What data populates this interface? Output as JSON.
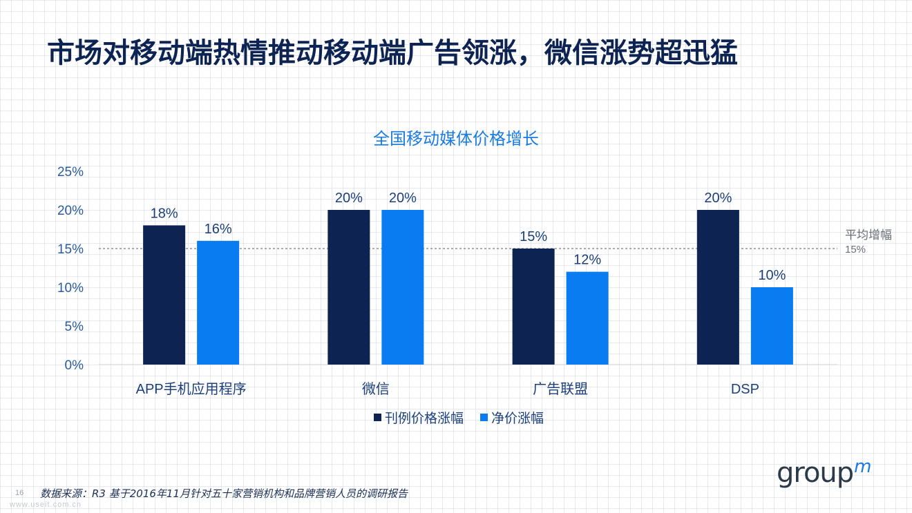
{
  "slide": {
    "title": "市场对移动端热情推动移动端广告领涨，微信涨势超迅猛",
    "footnote": "数据来源：R3 基于2016年11月针对五十家营销机构和品牌营销人员的调研报告",
    "page_number": "16",
    "watermark": "www.useit.com.cn",
    "logo": {
      "main": "group",
      "mark": "m"
    }
  },
  "colors": {
    "title": "#0d2452",
    "series_1": "#0d2452",
    "series_2": "#0a7cf2",
    "chart_title": "#1a7be0",
    "text": "#1b3f7a"
  },
  "chart_data": {
    "type": "bar",
    "title": "全国移动媒体价格增长",
    "categories": [
      "APP手机应用程序",
      "微信",
      "广告联盟",
      "DSP"
    ],
    "series": [
      {
        "name": "刊例价格涨幅",
        "values": [
          18,
          20,
          15,
          20
        ],
        "labels": [
          "18%",
          "20%",
          "15%",
          "20%"
        ],
        "color": "#0d2452"
      },
      {
        "name": "净价涨幅",
        "values": [
          16,
          20,
          12,
          10
        ],
        "labels": [
          "16%",
          "20%",
          "12%",
          "10%"
        ],
        "color": "#0a7cf2"
      }
    ],
    "ylim": [
      0,
      25
    ],
    "yticks": [
      0,
      5,
      10,
      15,
      20,
      25
    ],
    "ytick_labels": [
      "0%",
      "5%",
      "10%",
      "15%",
      "20%",
      "25%"
    ],
    "reference_line": {
      "value": 15,
      "label": "平均增幅",
      "value_label": "15%",
      "style": "dashed"
    },
    "legend_position": "bottom",
    "grid": false
  }
}
